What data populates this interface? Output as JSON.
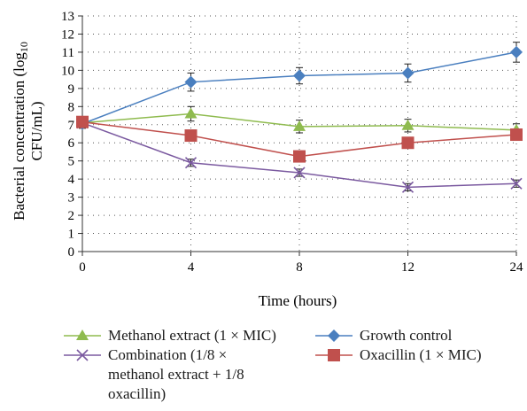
{
  "chart_data": {
    "type": "line",
    "xlabel": "Time (hours)",
    "ylabel_line1": "Bacterial concentration (log",
    "ylabel_sub": "10",
    "ylabel_line2": "CFU/mL)",
    "categories": [
      "0",
      "4",
      "8",
      "12",
      "24"
    ],
    "ylim": [
      0,
      13
    ],
    "yticks": [
      0,
      1,
      2,
      3,
      4,
      5,
      6,
      7,
      8,
      9,
      10,
      11,
      12,
      13
    ],
    "grid": "dotted",
    "series": [
      {
        "name": "Methanol extract (1 × MIC)",
        "color": "#8fbb4f",
        "marker": "triangle",
        "values": [
          7.1,
          7.6,
          6.9,
          6.95,
          6.7
        ],
        "errors": [
          0.25,
          0.4,
          0.35,
          0.35,
          0.35
        ]
      },
      {
        "name": "Growth control",
        "color": "#4a7fbf",
        "marker": "diamond",
        "values": [
          7.05,
          9.35,
          9.7,
          9.85,
          11.0
        ],
        "errors": [
          0.25,
          0.5,
          0.45,
          0.5,
          0.55
        ]
      },
      {
        "name": "Combination (1/8 × methanol extract + 1/8 oxacillin)",
        "color": "#7b5aa0",
        "marker": "x",
        "values": [
          7.1,
          4.9,
          4.35,
          3.55,
          3.75
        ],
        "errors": [
          0.2,
          0.2,
          0.2,
          0.2,
          0.2
        ]
      },
      {
        "name": "Oxacillin (1 × MIC)",
        "color": "#c0504d",
        "marker": "square",
        "values": [
          7.15,
          6.4,
          5.25,
          6.0,
          6.45
        ],
        "errors": [
          0.2,
          0.2,
          0.2,
          0.2,
          0.2
        ]
      }
    ]
  },
  "legend": {
    "methanol": "Methanol extract (1 × MIC)",
    "growth": "Growth control",
    "combination": "Combination (1/8 ×\nmethanol extract + 1/8\noxacillin)",
    "oxacillin": "Oxacillin (1 × MIC)"
  }
}
